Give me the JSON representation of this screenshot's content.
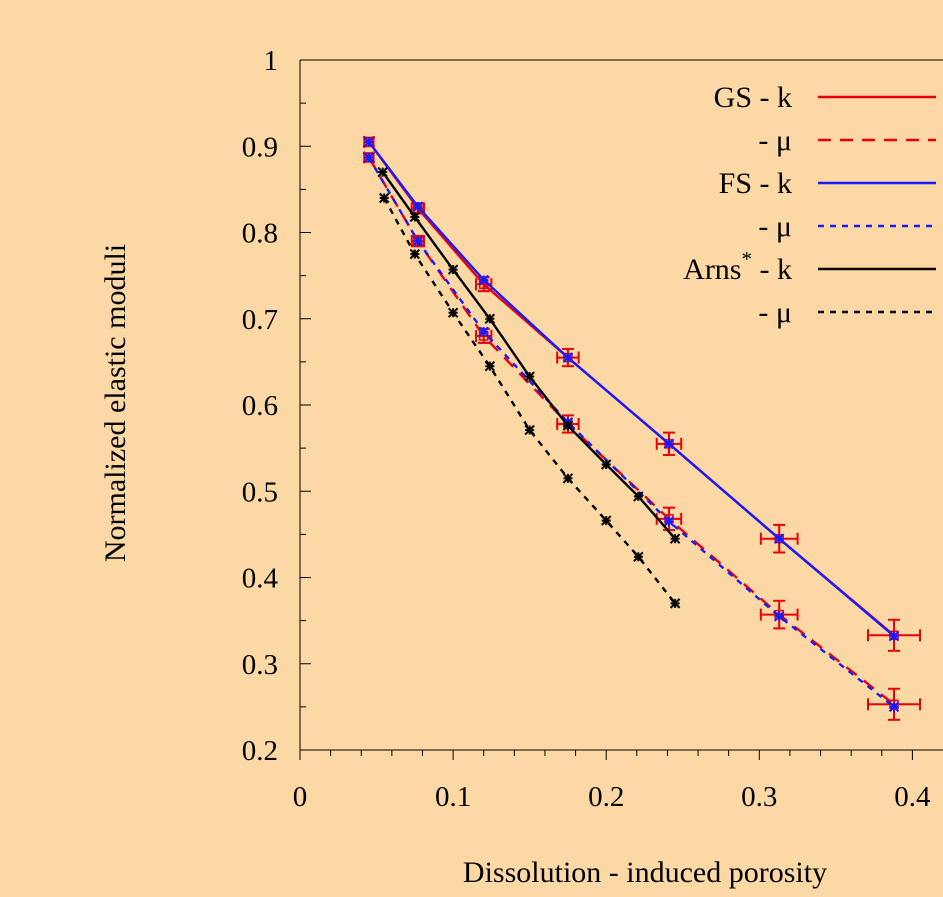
{
  "colors": {
    "background": "#fcd9a4",
    "gs": "#e8000b",
    "fs": "#1a1aff",
    "arns": "#000000"
  },
  "chart_data": {
    "type": "line",
    "xlabel": "Dissolution - induced porosity",
    "ylabel": "Normalized elastic moduli",
    "xlim": [
      0,
      0.42
    ],
    "ylim": [
      0.2,
      1.0
    ],
    "x_ticks": [
      "0",
      "0.1",
      "0.2",
      "0.3",
      "0.4"
    ],
    "y_ticks": [
      "0.2",
      "0.3",
      "0.4",
      "0.5",
      "0.6",
      "0.7",
      "0.8",
      "0.9",
      "1"
    ],
    "legend_position": "top-right",
    "series": [
      {
        "name": "GS - k",
        "color": "#e8000b",
        "dash": "solid",
        "points": [
          {
            "x": 0.045,
            "y": 0.905,
            "xerr": 0.003,
            "yerr": 0.005
          },
          {
            "x": 0.077,
            "y": 0.828,
            "xerr": 0.004,
            "yerr": 0.006
          },
          {
            "x": 0.12,
            "y": 0.74,
            "xerr": 0.005,
            "yerr": 0.008
          },
          {
            "x": 0.175,
            "y": 0.655,
            "xerr": 0.007,
            "yerr": 0.01
          },
          {
            "x": 0.241,
            "y": 0.555,
            "xerr": 0.008,
            "yerr": 0.013
          },
          {
            "x": 0.313,
            "y": 0.445,
            "xerr": 0.012,
            "yerr": 0.016
          },
          {
            "x": 0.388,
            "y": 0.333,
            "xerr": 0.017,
            "yerr": 0.018
          }
        ]
      },
      {
        "name": "- μ",
        "color": "#e8000b",
        "dash": "dashed",
        "points": [
          {
            "x": 0.045,
            "y": 0.887,
            "xerr": 0.003,
            "yerr": 0.005
          },
          {
            "x": 0.077,
            "y": 0.79,
            "xerr": 0.004,
            "yerr": 0.006
          },
          {
            "x": 0.12,
            "y": 0.68,
            "xerr": 0.005,
            "yerr": 0.008
          },
          {
            "x": 0.175,
            "y": 0.578,
            "xerr": 0.007,
            "yerr": 0.01
          },
          {
            "x": 0.241,
            "y": 0.468,
            "xerr": 0.008,
            "yerr": 0.013
          },
          {
            "x": 0.313,
            "y": 0.357,
            "xerr": 0.012,
            "yerr": 0.016
          },
          {
            "x": 0.388,
            "y": 0.253,
            "xerr": 0.017,
            "yerr": 0.018
          }
        ]
      },
      {
        "name": "FS - k",
        "color": "#1a1aff",
        "dash": "solid",
        "points": [
          {
            "x": 0.045,
            "y": 0.905
          },
          {
            "x": 0.077,
            "y": 0.83
          },
          {
            "x": 0.12,
            "y": 0.745
          },
          {
            "x": 0.175,
            "y": 0.655
          },
          {
            "x": 0.241,
            "y": 0.555
          },
          {
            "x": 0.313,
            "y": 0.445
          },
          {
            "x": 0.388,
            "y": 0.332
          }
        ]
      },
      {
        "name": "- μ",
        "color": "#1a1aff",
        "dash": "dotted",
        "points": [
          {
            "x": 0.045,
            "y": 0.887
          },
          {
            "x": 0.077,
            "y": 0.79
          },
          {
            "x": 0.12,
            "y": 0.685
          },
          {
            "x": 0.175,
            "y": 0.58
          },
          {
            "x": 0.241,
            "y": 0.465
          },
          {
            "x": 0.313,
            "y": 0.355
          },
          {
            "x": 0.388,
            "y": 0.25
          }
        ]
      },
      {
        "name": "Arns* - k",
        "color": "#000000",
        "dash": "solid",
        "points": [
          {
            "x": 0.054,
            "y": 0.87
          },
          {
            "x": 0.075,
            "y": 0.818
          },
          {
            "x": 0.1,
            "y": 0.757
          },
          {
            "x": 0.124,
            "y": 0.7
          },
          {
            "x": 0.15,
            "y": 0.633
          },
          {
            "x": 0.175,
            "y": 0.576
          },
          {
            "x": 0.2,
            "y": 0.531
          },
          {
            "x": 0.221,
            "y": 0.494
          },
          {
            "x": 0.245,
            "y": 0.445
          }
        ]
      },
      {
        "name": "- μ",
        "color": "#000000",
        "dash": "dotted",
        "points": [
          {
            "x": 0.055,
            "y": 0.84
          },
          {
            "x": 0.075,
            "y": 0.775
          },
          {
            "x": 0.1,
            "y": 0.707
          },
          {
            "x": 0.124,
            "y": 0.645
          },
          {
            "x": 0.15,
            "y": 0.571
          },
          {
            "x": 0.175,
            "y": 0.515
          },
          {
            "x": 0.2,
            "y": 0.466
          },
          {
            "x": 0.221,
            "y": 0.424
          },
          {
            "x": 0.245,
            "y": 0.37
          }
        ]
      }
    ],
    "legend": [
      {
        "label": "GS - k",
        "color": "#e8000b",
        "dash": "solid"
      },
      {
        "label": "- μ",
        "color": "#e8000b",
        "dash": "dashed"
      },
      {
        "label": "FS - k",
        "color": "#1a1aff",
        "dash": "solid"
      },
      {
        "label": "- μ",
        "color": "#1a1aff",
        "dash": "dotted"
      },
      {
        "label": "Arns",
        "superscript": "*",
        "suffix": " - k",
        "color": "#000000",
        "dash": "solid"
      },
      {
        "label": "- μ",
        "color": "#000000",
        "dash": "dotted"
      }
    ]
  }
}
